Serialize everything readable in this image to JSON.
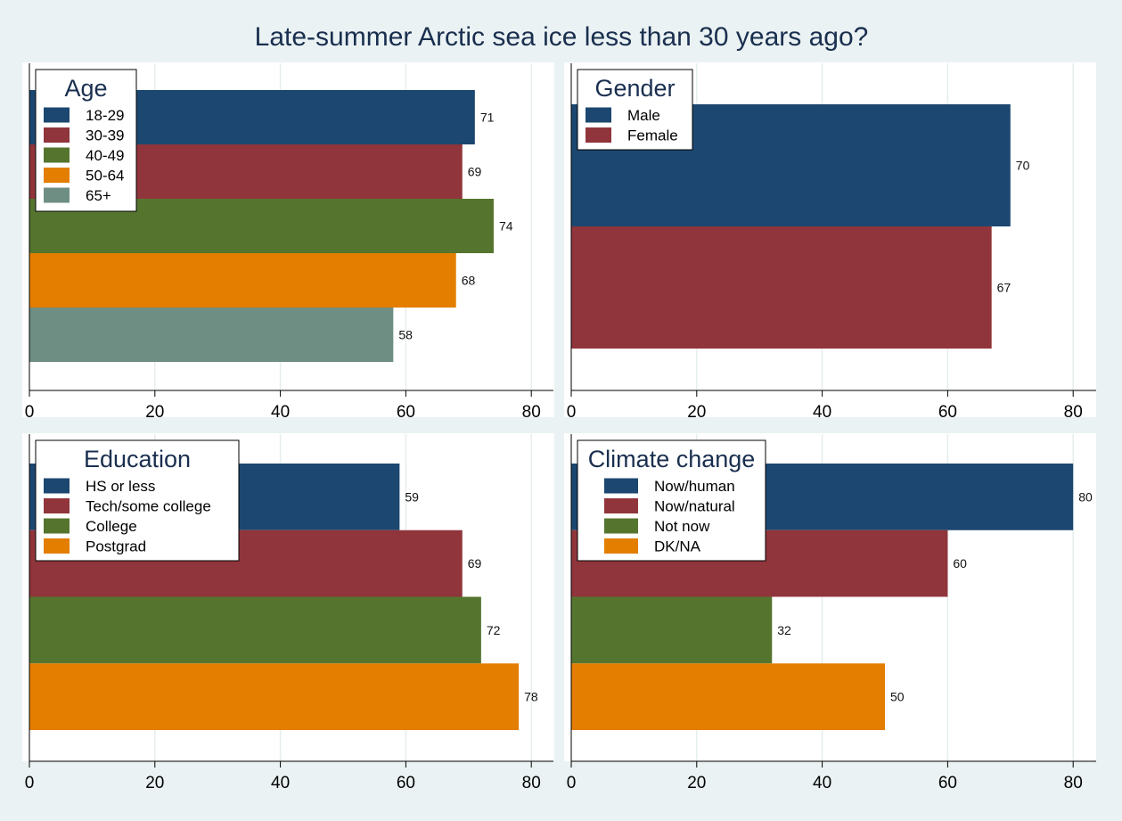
{
  "chart_data": {
    "title": "Late-summer Arctic sea ice less than 30 years ago?",
    "panels": [
      {
        "type": "bar",
        "orientation": "horizontal",
        "legend_title": "Age",
        "legend_position": "top-left",
        "xlim": [
          0,
          80
        ],
        "xticks": [
          0,
          20,
          40,
          60,
          80
        ],
        "grid": true,
        "categories": [
          "18-29",
          "30-39",
          "40-49",
          "50-64",
          "65+"
        ],
        "values": [
          71,
          69,
          74,
          68,
          58
        ],
        "colors": [
          "#1c4770",
          "#90353b",
          "#55752f",
          "#e37e00",
          "#6e8e84"
        ]
      },
      {
        "type": "bar",
        "orientation": "horizontal",
        "legend_title": "Gender",
        "legend_position": "top-left",
        "xlim": [
          0,
          80
        ],
        "xticks": [
          0,
          20,
          40,
          60,
          80
        ],
        "grid": true,
        "categories": [
          "Male",
          "Female"
        ],
        "values": [
          70,
          67
        ],
        "colors": [
          "#1c4770",
          "#90353b"
        ]
      },
      {
        "type": "bar",
        "orientation": "horizontal",
        "legend_title": "Education",
        "legend_position": "top-left",
        "xlim": [
          0,
          80
        ],
        "xticks": [
          0,
          20,
          40,
          60,
          80
        ],
        "grid": true,
        "categories": [
          "HS or less",
          "Tech/some college",
          "College",
          "Postgrad"
        ],
        "values": [
          59,
          69,
          72,
          78
        ],
        "colors": [
          "#1c4770",
          "#90353b",
          "#55752f",
          "#e37e00"
        ]
      },
      {
        "type": "bar",
        "orientation": "horizontal",
        "legend_title": "Climate change",
        "legend_position": "top-left",
        "xlim": [
          0,
          80
        ],
        "xticks": [
          0,
          20,
          40,
          60,
          80
        ],
        "grid": true,
        "categories": [
          "Now/human",
          "Now/natural",
          "Not now",
          "DK/NA"
        ],
        "values": [
          80,
          60,
          32,
          50
        ],
        "colors": [
          "#1c4770",
          "#90353b",
          "#55752f",
          "#e37e00"
        ]
      }
    ]
  },
  "style": {
    "background": "#eaf2f3",
    "panel_background": "#ffffff",
    "title_color": "#1a2f4f",
    "grid_color": "#e6eded"
  }
}
